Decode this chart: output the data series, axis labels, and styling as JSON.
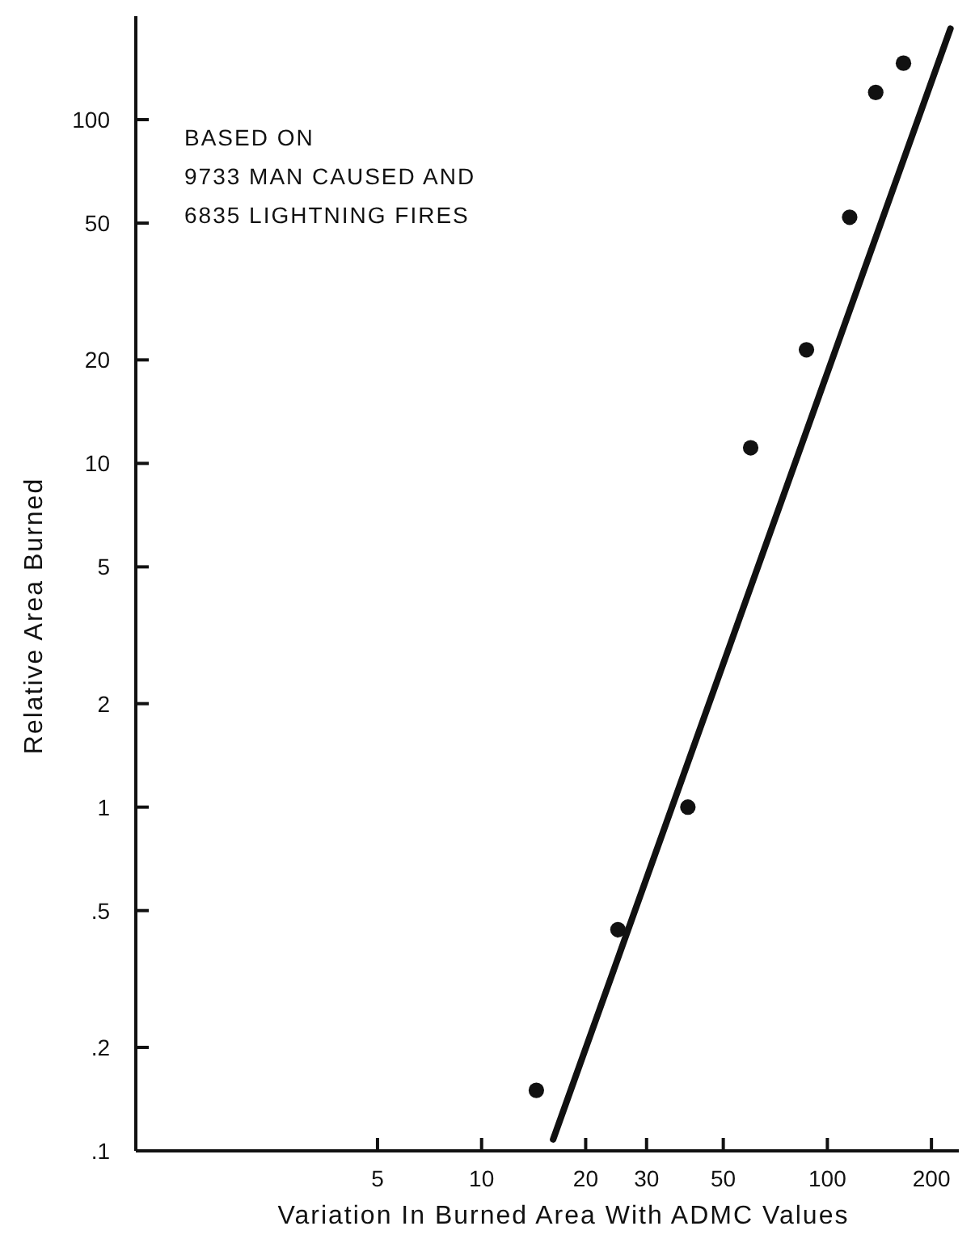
{
  "chart_data": {
    "type": "scatter",
    "xlabel": "Variation In Burned Area With ADMC Values",
    "ylabel": "Relative Area Burned",
    "annotations": [
      "BASED ON",
      "9733 MAN CAUSED AND",
      "6835 LIGHTNING FIRES"
    ],
    "log": "xy",
    "grid": false,
    "marker": "circle",
    "xlim": [
      1,
      240
    ],
    "xticks": [
      5,
      10,
      20,
      30,
      50,
      100,
      200
    ],
    "ylim": [
      0.1,
      200
    ],
    "yticks": [
      {
        "value": 0.1,
        "label": ".1"
      },
      {
        "value": 0.2,
        "label": ".2"
      },
      {
        "value": 0.5,
        "label": ".5"
      },
      1,
      2,
      5,
      10,
      20,
      50,
      100
    ],
    "series": [
      {
        "color": "#111111",
        "x": [
          14.4,
          24.8,
          39.5,
          60,
          87,
          116,
          138,
          166
        ],
        "values": [
          0.15,
          0.44,
          1.0,
          11.1,
          21.4,
          52,
          120,
          146
        ]
      },
      {
        "type": "line",
        "color": "#111111",
        "line_style": "solid",
        "marker": "none",
        "x": [
          16.1,
          227
        ],
        "values": [
          0.108,
          184
        ]
      }
    ]
  }
}
